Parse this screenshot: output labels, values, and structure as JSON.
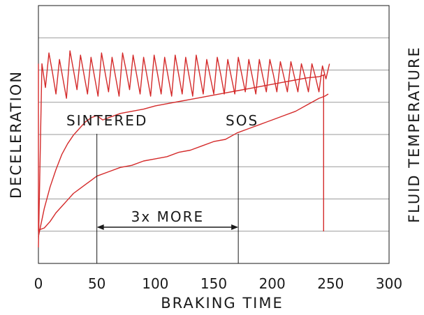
{
  "chart_data": {
    "type": "line",
    "xlabel": "BRAKING TIME",
    "ylabel_left": "DECELERATION",
    "ylabel_right": "FLUID TEMPERATURE",
    "xlim": [
      0,
      300
    ],
    "x_ticks": [
      "0",
      "50",
      "100",
      "150",
      "200",
      "250",
      "300"
    ],
    "grid": "horizontal",
    "gridlines": 8,
    "line_color": "#d42a2a",
    "series": [
      {
        "x": [
          0,
          3,
          6,
          9,
          12,
          15,
          18,
          21,
          24,
          27,
          30,
          33,
          36,
          39,
          42,
          45,
          48,
          51,
          54,
          57,
          60,
          63,
          66,
          69,
          72,
          75,
          78,
          81,
          84,
          87,
          90,
          93,
          96,
          99,
          102,
          105,
          108,
          111,
          114,
          117,
          120,
          123,
          126,
          129,
          132,
          135,
          138,
          141,
          144,
          147,
          150,
          153,
          156,
          159,
          162,
          165,
          168,
          171,
          174,
          177,
          180,
          183,
          186,
          189,
          192,
          195,
          198,
          201,
          204,
          207,
          210,
          213,
          216,
          219,
          222,
          225,
          228,
          231,
          234,
          237,
          240,
          243,
          246,
          249
        ],
        "y": [
          0.0,
          0.85,
          0.74,
          0.9,
          0.81,
          0.71,
          0.87,
          0.78,
          0.69,
          0.91,
          0.82,
          0.73,
          0.89,
          0.8,
          0.71,
          0.88,
          0.79,
          0.7,
          0.9,
          0.81,
          0.72,
          0.88,
          0.79,
          0.7,
          0.9,
          0.82,
          0.73,
          0.89,
          0.8,
          0.71,
          0.88,
          0.79,
          0.7,
          0.89,
          0.8,
          0.71,
          0.88,
          0.79,
          0.7,
          0.89,
          0.8,
          0.71,
          0.88,
          0.79,
          0.7,
          0.89,
          0.8,
          0.71,
          0.87,
          0.79,
          0.71,
          0.88,
          0.8,
          0.71,
          0.87,
          0.79,
          0.71,
          0.88,
          0.8,
          0.72,
          0.87,
          0.79,
          0.71,
          0.87,
          0.79,
          0.72,
          0.87,
          0.8,
          0.72,
          0.86,
          0.79,
          0.72,
          0.86,
          0.79,
          0.72,
          0.85,
          0.79,
          0.72,
          0.85,
          0.79,
          0.72,
          0.84,
          0.78,
          0.85
        ]
      },
      {
        "x": [
          0,
          5,
          10,
          15,
          20,
          25,
          30,
          35,
          40,
          45,
          50,
          55,
          60,
          70,
          80,
          90,
          100,
          110,
          120,
          130,
          140,
          150,
          160,
          170,
          180,
          190,
          200,
          210,
          220,
          230,
          240,
          245
        ],
        "y": [
          0.05,
          0.18,
          0.28,
          0.36,
          0.43,
          0.48,
          0.52,
          0.55,
          0.58,
          0.6,
          0.61,
          0.59,
          0.6,
          0.62,
          0.63,
          0.64,
          0.655,
          0.665,
          0.675,
          0.685,
          0.695,
          0.705,
          0.715,
          0.725,
          0.735,
          0.745,
          0.755,
          0.765,
          0.775,
          0.785,
          0.79,
          0.8
        ]
      },
      {
        "x": [
          0,
          5,
          10,
          15,
          20,
          25,
          30,
          35,
          40,
          45,
          50,
          60,
          70,
          80,
          90,
          100,
          110,
          120,
          130,
          140,
          150,
          160,
          170,
          180,
          190,
          200,
          210,
          220,
          230,
          240,
          245,
          248
        ],
        "y": [
          0.08,
          0.09,
          0.12,
          0.16,
          0.19,
          0.22,
          0.25,
          0.27,
          0.29,
          0.31,
          0.33,
          0.35,
          0.37,
          0.38,
          0.4,
          0.41,
          0.42,
          0.44,
          0.45,
          0.47,
          0.49,
          0.5,
          0.53,
          0.55,
          0.57,
          0.59,
          0.61,
          0.63,
          0.66,
          0.69,
          0.7,
          0.71
        ]
      }
    ],
    "annotations": [
      {
        "text": "SINTERED",
        "x": 50
      },
      {
        "text": "SOS",
        "x": 171
      },
      {
        "text": "3x MORE",
        "from": 50,
        "to": 171
      }
    ]
  }
}
